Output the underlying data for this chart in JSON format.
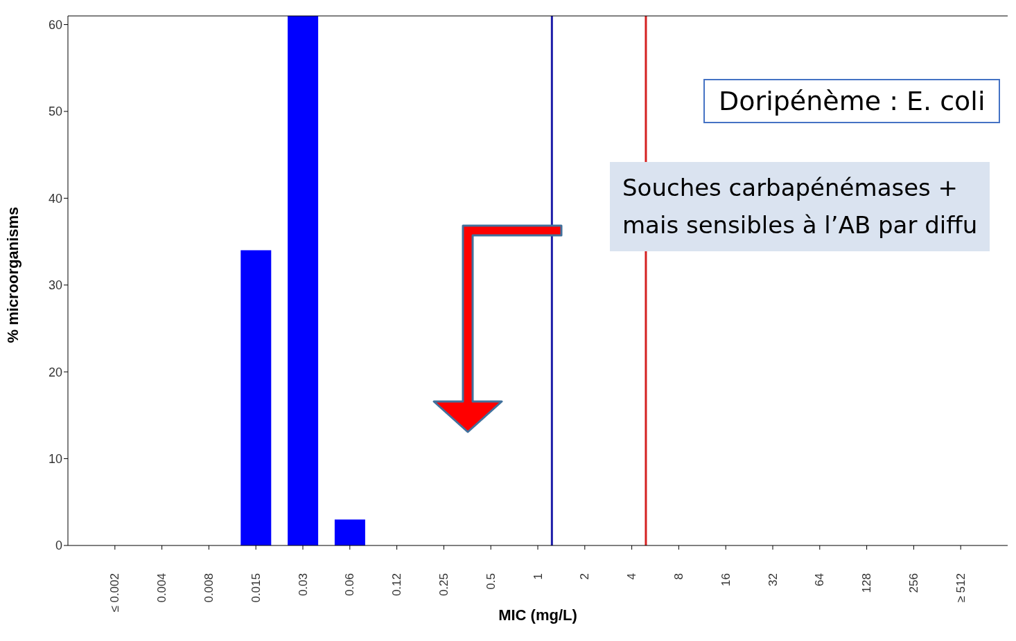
{
  "chart_data": {
    "type": "bar",
    "xlabel": "MIC (mg/L)",
    "ylabel": "% microorganisms",
    "categories": [
      "≤ 0.002",
      "0.004",
      "0.008",
      "0.015",
      "0.03",
      "0.06",
      "0.12",
      "0.25",
      "0.5",
      "1",
      "2",
      "4",
      "8",
      "16",
      "32",
      "64",
      "128",
      "256",
      "≥ 512"
    ],
    "values": [
      0,
      0,
      0,
      34,
      61,
      3,
      0,
      0,
      0,
      0,
      0,
      0,
      0,
      0,
      0,
      0,
      0,
      0,
      0
    ],
    "color": "#0000ff",
    "ylim": [
      0,
      61
    ],
    "yticks": [
      0,
      10,
      20,
      30,
      40,
      50,
      60
    ],
    "grid": false,
    "legend": false,
    "ref_lines": [
      {
        "axis": "x",
        "value": "1",
        "color": "#1c1ca8"
      },
      {
        "axis": "x",
        "value": "4",
        "color": "#d42121"
      }
    ],
    "annotations": [
      "Doripénème : E. coli",
      "Souches carbapénémases +\nmais sensibles à l’AB par diffu"
    ]
  }
}
